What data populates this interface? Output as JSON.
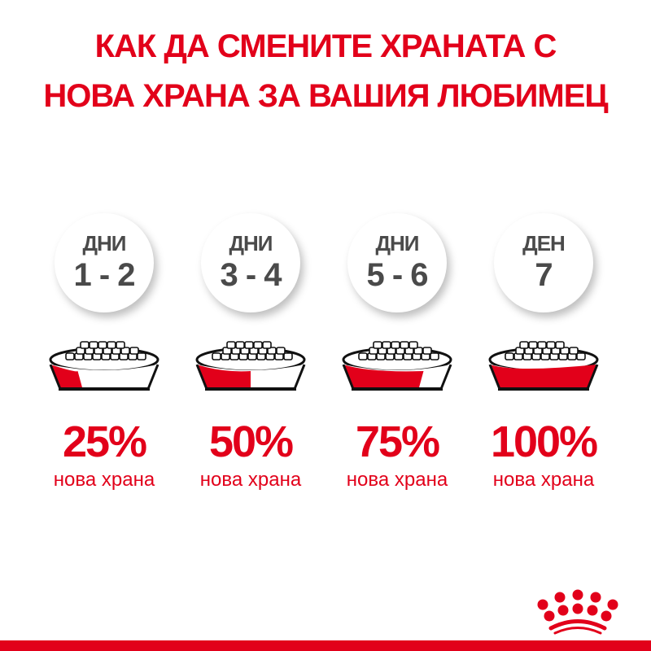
{
  "title": {
    "line1": "КАК ДА СМЕНИТЕ ХРАНАТА С",
    "line2": "НОВА ХРАНА ЗА ВАШИЯ ЛЮБИМЕЦ"
  },
  "steps": [
    {
      "label": "ДНИ",
      "days": "1 - 2",
      "percent": "25%",
      "fraction": 0.25,
      "caption": "нова храна"
    },
    {
      "label": "ДНИ",
      "days": "3 - 4",
      "percent": "50%",
      "fraction": 0.5,
      "caption": "нова храна"
    },
    {
      "label": "ДНИ",
      "days": "5 - 6",
      "percent": "75%",
      "fraction": 0.75,
      "caption": "нова храна"
    },
    {
      "label": "ДЕН",
      "days": "7",
      "percent": "100%",
      "fraction": 1.0,
      "caption": "нова храна"
    }
  ],
  "colors": {
    "brand_red": "#e2001a",
    "circle_text": "#4a4a4a"
  },
  "logo": {
    "icon": "crown-icon"
  }
}
